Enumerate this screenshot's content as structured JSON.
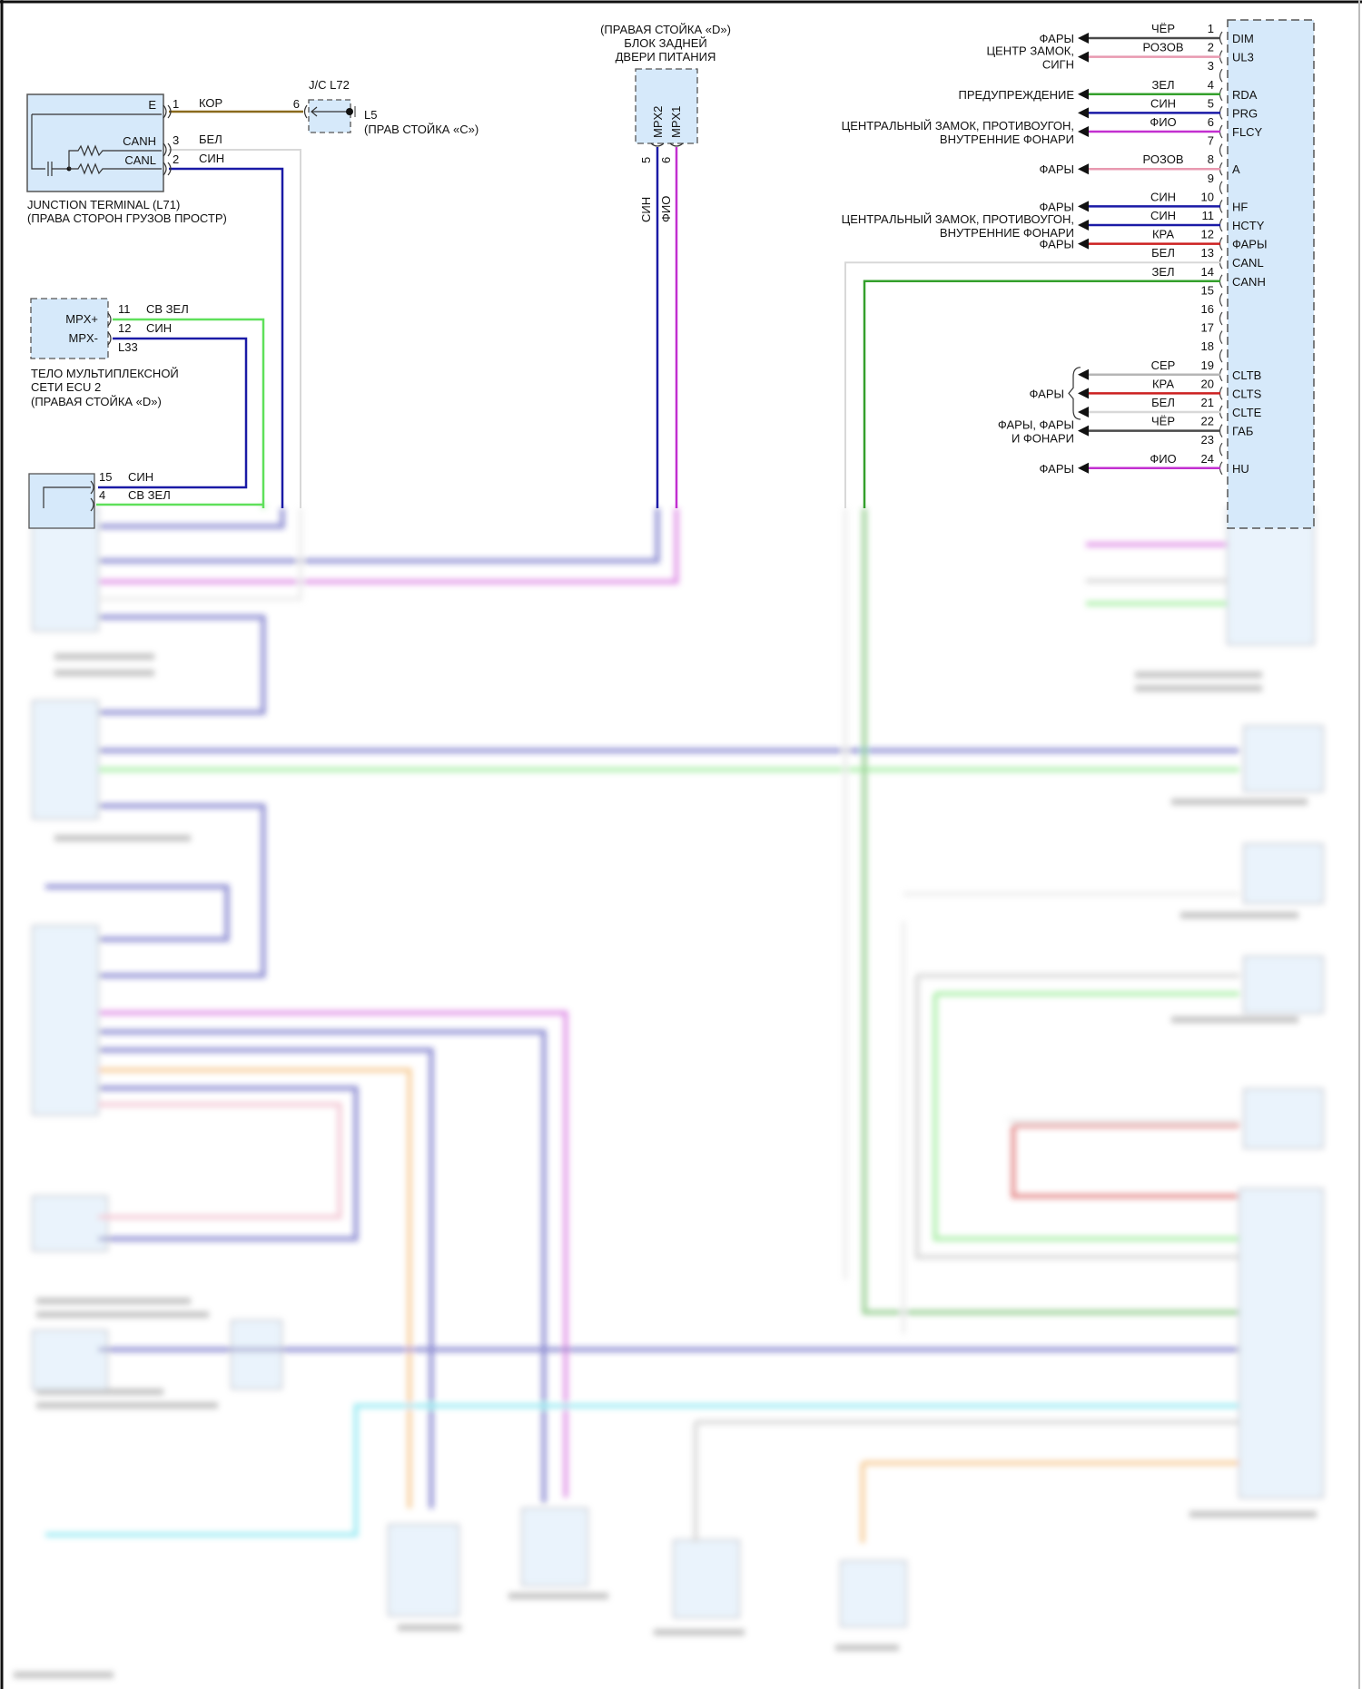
{
  "colors": {
    "black": "#4a4a4a",
    "pink": "#e899b0",
    "green": "#34a02c",
    "light_green": "#5fe05a",
    "blue": "#1a1aa6",
    "magenta": "#c22fd0",
    "red": "#cc2020",
    "grey": "#b5b5b5",
    "white": "#d8d8d8",
    "brown": "#8a6a1c",
    "orange": "#f0a040",
    "cyan": "#40d8e8",
    "connector_fill": "#d6e9fa"
  },
  "junction_terminal": {
    "title": "JUNCTION TERMINAL (L71)",
    "location": "(ПРАВА СТОРОН ГРУЗОВ ПРОСТР)",
    "pins": [
      {
        "num": "1",
        "signal": "E",
        "wire": "КОР"
      },
      {
        "num": "3",
        "signal": "CANH",
        "wire": "БЕЛ"
      },
      {
        "num": "2",
        "signal": "CANL",
        "wire": "СИН"
      }
    ]
  },
  "jc": {
    "label": "J/C L72",
    "pin": "6",
    "ground": "L5",
    "ground_location": "(ПРАВ СТОЙКА «С»)"
  },
  "mpx_ecu2": {
    "lines": [
      "ТЕЛО МУЛЬТИПЛЕКСНОЙ",
      "СЕТИ ECU 2",
      "(ПРАВАЯ СТОЙКА «D»)"
    ],
    "connector": "L33",
    "pins": [
      {
        "num": "11",
        "signal": "MPX+",
        "wire": "СВ ЗЕЛ"
      },
      {
        "num": "12",
        "signal": "MPX-",
        "wire": "СИН"
      }
    ]
  },
  "lower_connector": {
    "pins": [
      {
        "num": "15",
        "wire": "СИН"
      },
      {
        "num": "4",
        "wire": "СВ ЗЕЛ"
      }
    ]
  },
  "rear_door": {
    "lines": [
      "(ПРАВАЯ СТОЙКА «D»)",
      "БЛОК ЗАДНЕЙ",
      "ДВЕРИ ПИТАНИЯ"
    ],
    "pins": [
      {
        "num": "5",
        "signal": "MPX2",
        "wire": "СИН"
      },
      {
        "num": "6",
        "signal": "MPX1",
        "wire": "ФИО"
      }
    ]
  },
  "main_ecu": {
    "pins": [
      {
        "num": "1",
        "signal": "DIM",
        "wire": "ЧЁР",
        "color": "black",
        "dest": [
          "ФАРЫ"
        ]
      },
      {
        "num": "2",
        "signal": "UL3",
        "wire": "РОЗОВ",
        "color": "pink",
        "dest": [
          "ЦЕНТР ЗАМОК,",
          "СИГН"
        ]
      },
      {
        "num": "3"
      },
      {
        "num": "4",
        "signal": "RDA",
        "wire": "ЗЕЛ",
        "color": "green",
        "dest": [
          "ПРЕДУПРЕЖДЕНИЕ"
        ]
      },
      {
        "num": "5",
        "signal": "PRG",
        "wire": "СИН",
        "color": "blue",
        "dest": []
      },
      {
        "num": "6",
        "signal": "FLCY",
        "wire": "ФИО",
        "color": "magenta",
        "dest": [
          "ЦЕНТРАЛЬНЫЙ ЗАМОК, ПРОТИВОУГОН,",
          "ВНУТРЕННИЕ ФОНАРИ"
        ]
      },
      {
        "num": "7"
      },
      {
        "num": "8",
        "signal": "A",
        "wire": "РОЗОВ",
        "color": "pink",
        "dest": [
          "ФАРЫ"
        ]
      },
      {
        "num": "9"
      },
      {
        "num": "10",
        "signal": "HF",
        "wire": "СИН",
        "color": "blue",
        "dest": [
          "ФАРЫ"
        ]
      },
      {
        "num": "11",
        "signal": "HCTY",
        "wire": "СИН",
        "color": "blue",
        "dest": [
          "ЦЕНТРАЛЬНЫЙ ЗАМОК, ПРОТИВОУГОН,",
          "ВНУТРЕННИЕ ФОНАРИ"
        ]
      },
      {
        "num": "12",
        "signal": "ФАРЫ",
        "wire": "КРА",
        "color": "red",
        "dest": [
          "ФАРЫ"
        ]
      },
      {
        "num": "13",
        "signal": "CANL",
        "wire": "БЕЛ",
        "color": "white",
        "route": "canl"
      },
      {
        "num": "14",
        "signal": "CANH",
        "wire": "ЗЕЛ",
        "color": "green",
        "route": "canh"
      },
      {
        "num": "15"
      },
      {
        "num": "16"
      },
      {
        "num": "17"
      },
      {
        "num": "18"
      },
      {
        "num": "19",
        "signal": "CLTB",
        "wire": "СЕР",
        "color": "grey",
        "dest": []
      },
      {
        "num": "20",
        "signal": "CLTS",
        "wire": "КРА",
        "color": "red",
        "dest": []
      },
      {
        "num": "21",
        "signal": "CLTE",
        "wire": "БЕЛ",
        "color": "white",
        "dest": []
      },
      {
        "num": "22",
        "signal": "ГАБ",
        "wire": "ЧЁР",
        "color": "black",
        "dest": [
          "ФАРЫ, ФАРЫ",
          "И ФОНАРИ"
        ]
      },
      {
        "num": "23"
      },
      {
        "num": "24",
        "signal": "HU",
        "wire": "ФИО",
        "color": "magenta",
        "dest": [
          "ФАРЫ"
        ]
      }
    ],
    "group_label": "ФАРЫ"
  }
}
